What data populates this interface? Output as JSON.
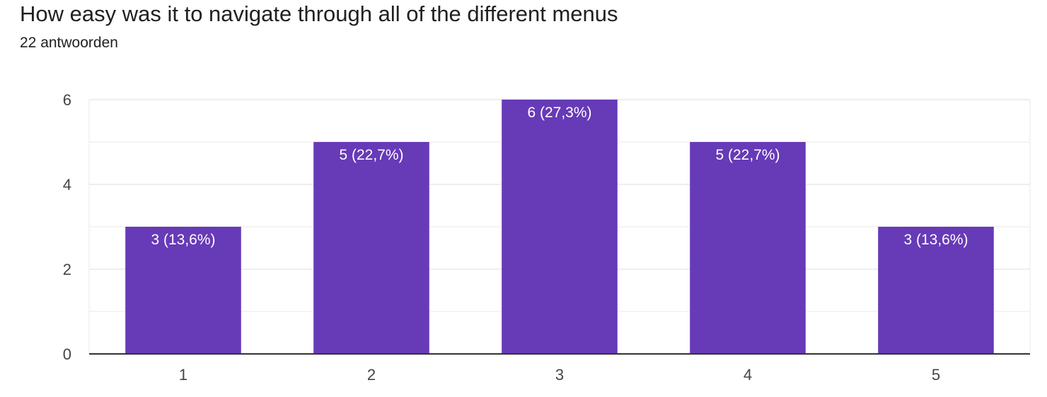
{
  "header": {
    "title": "How easy was it to navigate through all of the different menus",
    "subtitle": "22 antwoorden"
  },
  "colors": {
    "bar": "#673ab7",
    "grid": "#e8e8e8",
    "axis": "#333333",
    "text": "#202124",
    "bar_label": "#ffffff"
  },
  "chart_data": {
    "type": "bar",
    "categories": [
      "1",
      "2",
      "3",
      "4",
      "5"
    ],
    "values": [
      3,
      5,
      6,
      5,
      3
    ],
    "data_labels": [
      "3 (13,6%)",
      "5 (22,7%)",
      "6 (27,3%)",
      "5 (22,7%)",
      "3 (13,6%)"
    ],
    "yticks": [
      0,
      2,
      4,
      6
    ],
    "ylim": [
      0,
      6
    ],
    "grid": true,
    "xlabel": "",
    "ylabel": ""
  }
}
